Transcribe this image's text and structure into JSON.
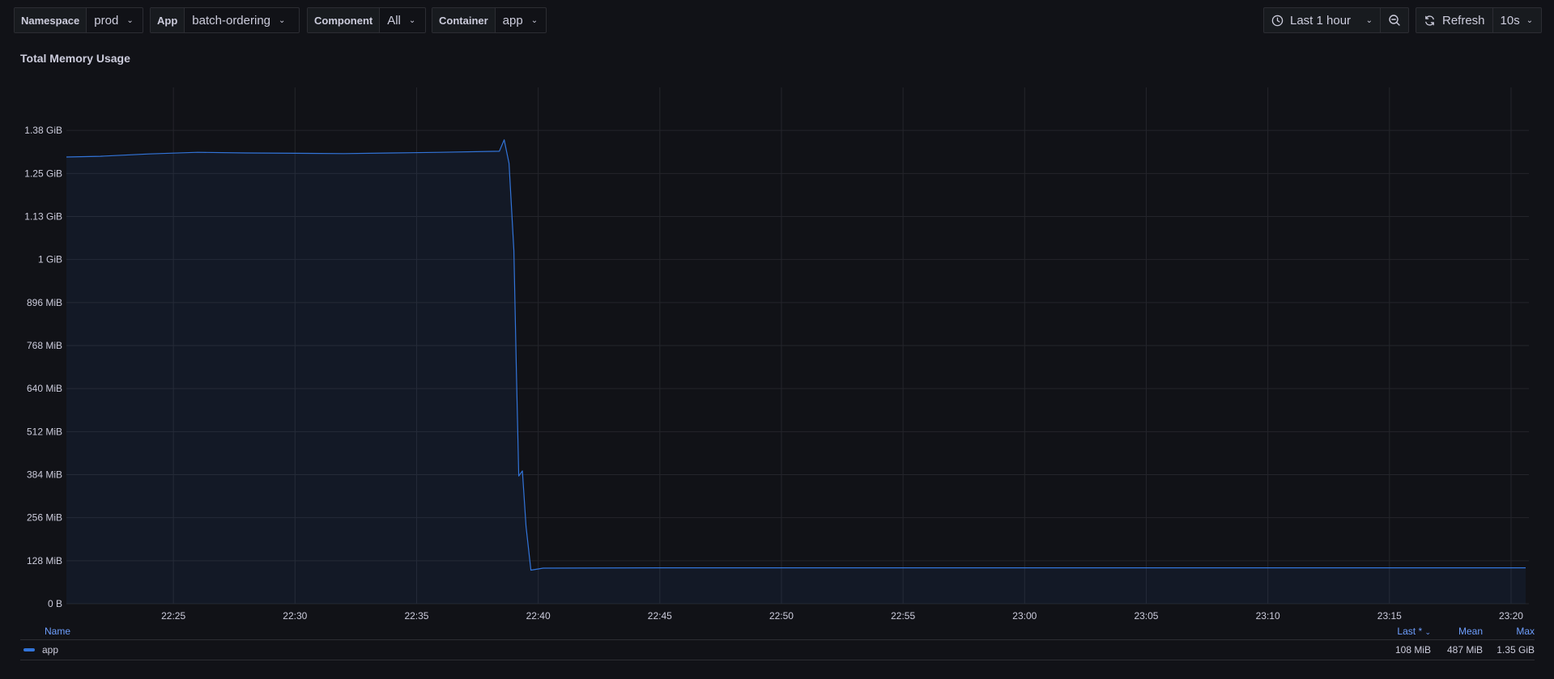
{
  "toolbar": {
    "variables": [
      {
        "label": "Namespace",
        "value": "prod"
      },
      {
        "label": "App",
        "value": "batch-ordering"
      },
      {
        "label": "Component",
        "value": "All"
      },
      {
        "label": "Container",
        "value": "app"
      }
    ],
    "time_range": "Last 1 hour",
    "refresh_label": "Refresh",
    "refresh_interval": "10s"
  },
  "icons": {
    "clock": "clock-icon",
    "zoom_out": "zoom-out-icon",
    "refresh": "sync-icon",
    "chevron": "chevron-down-icon"
  },
  "panel": {
    "title": "Total Memory Usage"
  },
  "chart_data": {
    "type": "area",
    "y_tick_labels": [
      "0 B",
      "128 MiB",
      "256 MiB",
      "384 MiB",
      "512 MiB",
      "640 MiB",
      "768 MiB",
      "896 MiB",
      "1 GiB",
      "1.13 GiB",
      "1.25 GiB",
      "1.38 GiB"
    ],
    "y_tick_values_mib": [
      0,
      128,
      256,
      384,
      512,
      640,
      768,
      896,
      1024,
      1152,
      1280,
      1408
    ],
    "ylim_mib": [
      0,
      1536
    ],
    "x_tick_labels": [
      "22:25",
      "22:30",
      "22:35",
      "22:40",
      "22:45",
      "22:50",
      "22:55",
      "23:00",
      "23:05",
      "23:10",
      "23:15",
      "23:20"
    ],
    "x_tick_minutes": [
      25,
      30,
      35,
      40,
      45,
      50,
      55,
      60,
      65,
      70,
      75,
      80
    ],
    "xlim_minutes": [
      20.6,
      80.6
    ],
    "grid": true,
    "series": [
      {
        "name": "app",
        "color": "#3274d9",
        "points_minutes_mib": [
          [
            20.6,
            1329
          ],
          [
            22,
            1331
          ],
          [
            24,
            1338
          ],
          [
            26,
            1343
          ],
          [
            28,
            1341
          ],
          [
            30,
            1340
          ],
          [
            32,
            1339
          ],
          [
            34,
            1341
          ],
          [
            36,
            1343
          ],
          [
            38.4,
            1346
          ],
          [
            38.6,
            1380
          ],
          [
            38.8,
            1310
          ],
          [
            39.0,
            1050
          ],
          [
            39.1,
            700
          ],
          [
            39.2,
            380
          ],
          [
            39.35,
            395
          ],
          [
            39.5,
            230
          ],
          [
            39.7,
            100
          ],
          [
            40.2,
            106
          ],
          [
            45,
            107
          ],
          [
            50,
            107
          ],
          [
            55,
            107
          ],
          [
            60,
            107
          ],
          [
            65,
            107
          ],
          [
            70,
            107
          ],
          [
            75,
            107
          ],
          [
            80.6,
            107
          ]
        ]
      }
    ]
  },
  "legend": {
    "headers": {
      "name": "Name",
      "last": "Last *",
      "mean": "Mean",
      "max": "Max"
    },
    "rows": [
      {
        "name": "app",
        "last": "108 MiB",
        "mean": "487 MiB",
        "max": "1.35 GiB"
      }
    ]
  }
}
